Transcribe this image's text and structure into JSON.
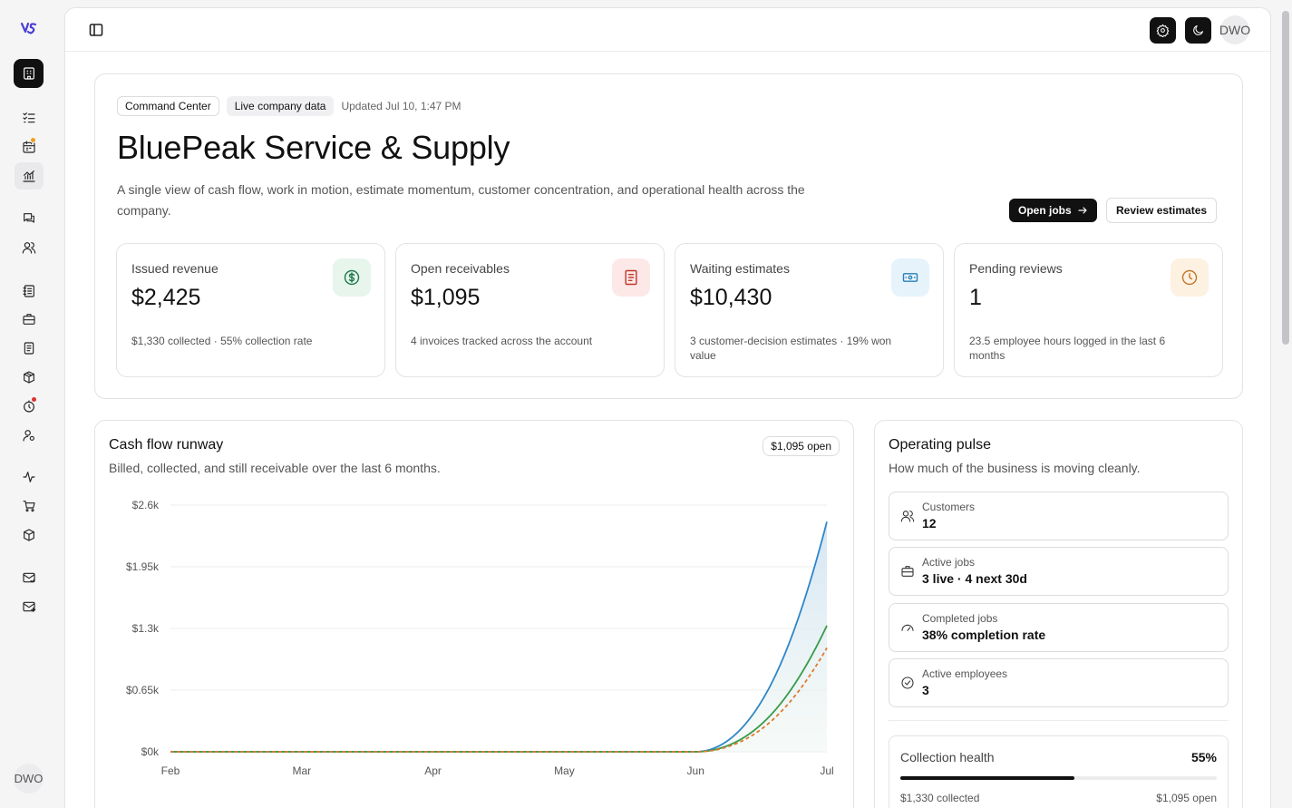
{
  "app": {
    "logo": "VS",
    "user_initials": "DWO"
  },
  "header": {
    "chips": [
      "Command Center",
      "Live company data"
    ],
    "updated": "Updated Jul 10, 1:47 PM"
  },
  "hero": {
    "title": "BluePeak Service & Supply",
    "description": "A single view of cash flow, work in motion, estimate momentum, customer concentration, and operational health across the company.",
    "primary_button": "Open jobs",
    "secondary_button": "Review estimates"
  },
  "kpis": [
    {
      "label": "Issued revenue",
      "value": "$2,425",
      "sub": "$1,330 collected · 55% collection rate",
      "icon": "dollar-icon",
      "color": "#1f7a4d",
      "bg": "#e7f5ec"
    },
    {
      "label": "Open receivables",
      "value": "$1,095",
      "sub": "4 invoices tracked across the account",
      "icon": "receipt-icon",
      "color": "#c0392b",
      "bg": "#fde8e8"
    },
    {
      "label": "Waiting estimates",
      "value": "$10,430",
      "sub": "3 customer-decision estimates · 19% won value",
      "icon": "banknote-icon",
      "color": "#2a7fb8",
      "bg": "#e6f3fb"
    },
    {
      "label": "Pending reviews",
      "value": "1",
      "sub": "23.5 employee hours logged in the last 6 months",
      "icon": "clock-icon",
      "color": "#c0772b",
      "bg": "#fdf1e2"
    }
  ],
  "cashflow": {
    "title": "Cash flow runway",
    "subtitle": "Billed, collected, and still receivable over the last 6 months.",
    "badge": "$1,095 open"
  },
  "chart_data": {
    "type": "area",
    "categories": [
      "Feb",
      "Mar",
      "Apr",
      "May",
      "Jun",
      "Jul"
    ],
    "series": [
      {
        "name": "",
        "values": [
          0,
          0,
          0,
          0,
          0,
          2425
        ],
        "color": "#2f86c8"
      },
      {
        "name": "",
        "values": [
          0,
          0,
          0,
          0,
          0,
          1330
        ],
        "color": "#3a9a4a"
      },
      {
        "name": "",
        "values": [
          0,
          0,
          0,
          0,
          0,
          1095
        ],
        "color": "#e07a2e"
      }
    ],
    "y_ticks": [
      "$0k",
      "$0.65k",
      "$1.3k",
      "$1.95k",
      "$2.6k"
    ],
    "ylim": [
      0,
      2600
    ],
    "grid": true
  },
  "pulse": {
    "title": "Operating pulse",
    "subtitle": "How much of the business is moving cleanly.",
    "stats": [
      {
        "label": "Customers",
        "value": "12",
        "icon": "users-icon"
      },
      {
        "label": "Active jobs",
        "value": "3 live · 4 next 30d",
        "icon": "briefcase-icon"
      },
      {
        "label": "Completed jobs",
        "value": "38% completion rate",
        "icon": "gauge-icon"
      },
      {
        "label": "Active employees",
        "value": "3",
        "icon": "check-circle-icon"
      }
    ],
    "health": {
      "label": "Collection health",
      "value": "55%",
      "fraction": 0.55,
      "collected": "$1,330 collected",
      "open": "$1,095 open"
    }
  }
}
